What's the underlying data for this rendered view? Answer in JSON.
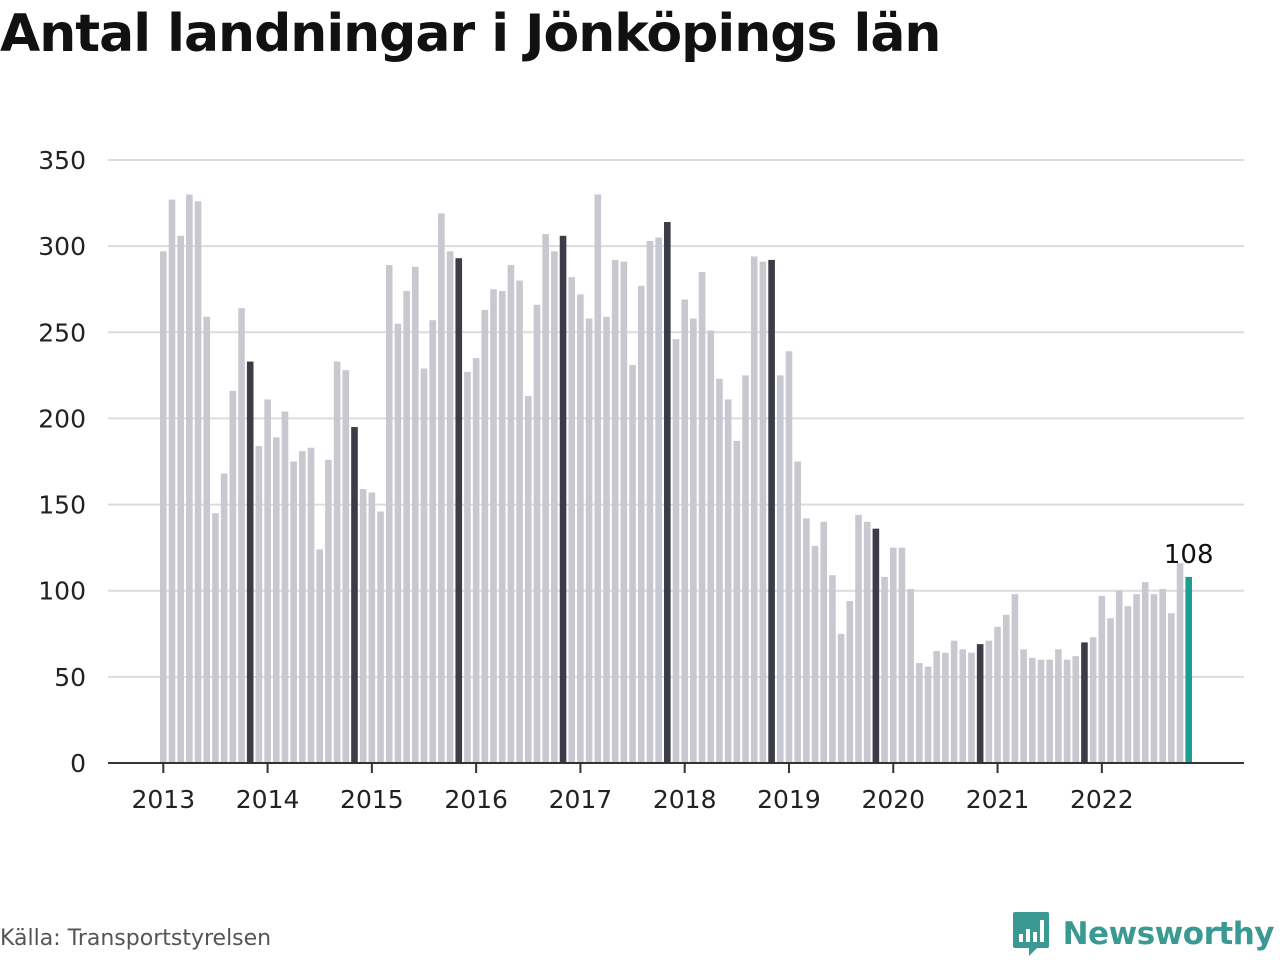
{
  "title": "Antal landningar i Jönköpings län",
  "source": "Källa: Transportstyrelsen",
  "brand": {
    "name": "Newsworthy",
    "icon": "bar-chart-logo-icon",
    "color": "#3a9a93"
  },
  "colors": {
    "bar": "#c8c8d0",
    "november": "#3c3c48",
    "latest": "#1a9e8f",
    "grid": "#dcdcdc",
    "axis": "#333333"
  },
  "chart_data": {
    "type": "bar",
    "title": "Antal landningar i Jönköpings län",
    "xlabel": "",
    "ylabel": "",
    "ylim": [
      0,
      350
    ],
    "yticks": [
      0,
      50,
      100,
      150,
      200,
      250,
      300,
      350
    ],
    "x_tick_labels": [
      "2013",
      "2014",
      "2015",
      "2016",
      "2017",
      "2018",
      "2019",
      "2020",
      "2021",
      "2022"
    ],
    "grid": true,
    "start": "2013-01",
    "frequency": "monthly",
    "highlight_month": "november",
    "series": [
      {
        "values": [
          297,
          327,
          306,
          330,
          326,
          259,
          145,
          168,
          216,
          264,
          233,
          184,
          211,
          189,
          204,
          175,
          181,
          183,
          124,
          176,
          233,
          228,
          195,
          159,
          157,
          146,
          289,
          255,
          274,
          288,
          229,
          257,
          319,
          297,
          293,
          227,
          235,
          263,
          275,
          274,
          289,
          280,
          213,
          266,
          307,
          297,
          306,
          282,
          272,
          258,
          330,
          259,
          292,
          291,
          231,
          277,
          303,
          305,
          314,
          246,
          269,
          258,
          285,
          251,
          223,
          211,
          187,
          225,
          294,
          291,
          292,
          225,
          239,
          175,
          142,
          126,
          140,
          109,
          75,
          94,
          144,
          140,
          136,
          108,
          125,
          125,
          101,
          58,
          56,
          65,
          64,
          71,
          66,
          64,
          69,
          71,
          79,
          86,
          98,
          66,
          61,
          60,
          60,
          66,
          60,
          62,
          70,
          73,
          97,
          84,
          100,
          91,
          98,
          105,
          98,
          101,
          87,
          116,
          108
        ]
      }
    ],
    "annotation": {
      "text": "108",
      "value": 108,
      "period": "2022-11"
    }
  }
}
